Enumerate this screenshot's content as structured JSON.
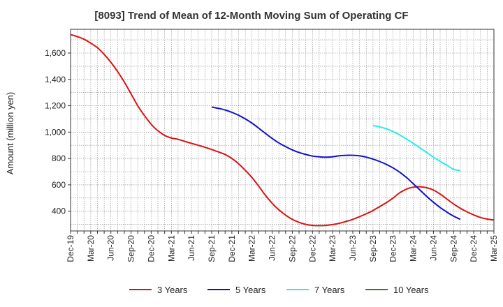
{
  "chart_data": {
    "type": "line",
    "title": "[8093]  Trend of Mean of 12-Month Moving Sum of Operating CF",
    "xlabel": "",
    "ylabel": "Amount (million yen)",
    "ylim": [
      250,
      1780
    ],
    "yticks": [
      400,
      600,
      800,
      1000,
      1200,
      1400,
      1600
    ],
    "ytick_labels": [
      "400",
      "600",
      "800",
      "1,000",
      "1,200",
      "1,400",
      "1,600"
    ],
    "x_start": "Dec-19",
    "months_span": 63,
    "xtick_labels": [
      "Dec-19",
      "Mar-20",
      "Jun-20",
      "Sep-20",
      "Dec-20",
      "Mar-21",
      "Jun-21",
      "Sep-21",
      "Dec-21",
      "Mar-22",
      "Jun-22",
      "Sep-22",
      "Dec-22",
      "Mar-23",
      "Jun-23",
      "Sep-23",
      "Dec-23",
      "Mar-24",
      "Jun-24",
      "Sep-24",
      "Dec-24",
      "Mar-25"
    ],
    "grid": true,
    "legend_position": "bottom",
    "series": [
      {
        "name": "3 Years",
        "color": "#dd1111",
        "start_month": 0,
        "values": [
          1740,
          1725,
          1705,
          1675,
          1640,
          1590,
          1530,
          1460,
          1380,
          1290,
          1200,
          1125,
          1060,
          1010,
          975,
          955,
          945,
          930,
          915,
          900,
          885,
          868,
          850,
          830,
          800,
          760,
          710,
          655,
          590,
          520,
          460,
          410,
          370,
          338,
          315,
          300,
          292,
          290,
          292,
          298,
          308,
          322,
          338,
          358,
          380,
          405,
          435,
          465,
          500,
          540,
          568,
          582,
          585,
          578,
          560,
          530,
          492,
          455,
          422,
          395,
          372,
          352,
          340,
          333
        ]
      },
      {
        "name": "5 Years",
        "color": "#1111cc",
        "start_month": 21,
        "values": [
          1190,
          1180,
          1168,
          1150,
          1128,
          1100,
          1068,
          1030,
          990,
          952,
          918,
          890,
          865,
          845,
          830,
          818,
          812,
          810,
          813,
          820,
          824,
          824,
          820,
          810,
          795,
          777,
          755,
          728,
          695,
          655,
          608,
          560,
          512,
          468,
          428,
          393,
          362,
          338
        ]
      },
      {
        "name": "7 Years",
        "color": "#22eeee",
        "start_month": 45,
        "values": [
          1050,
          1040,
          1025,
          1004,
          978,
          948,
          915,
          880,
          845,
          810,
          778,
          748,
          718,
          708
        ]
      },
      {
        "name": "10 Years",
        "color": "#228822",
        "start_month": 0,
        "values": []
      }
    ]
  }
}
